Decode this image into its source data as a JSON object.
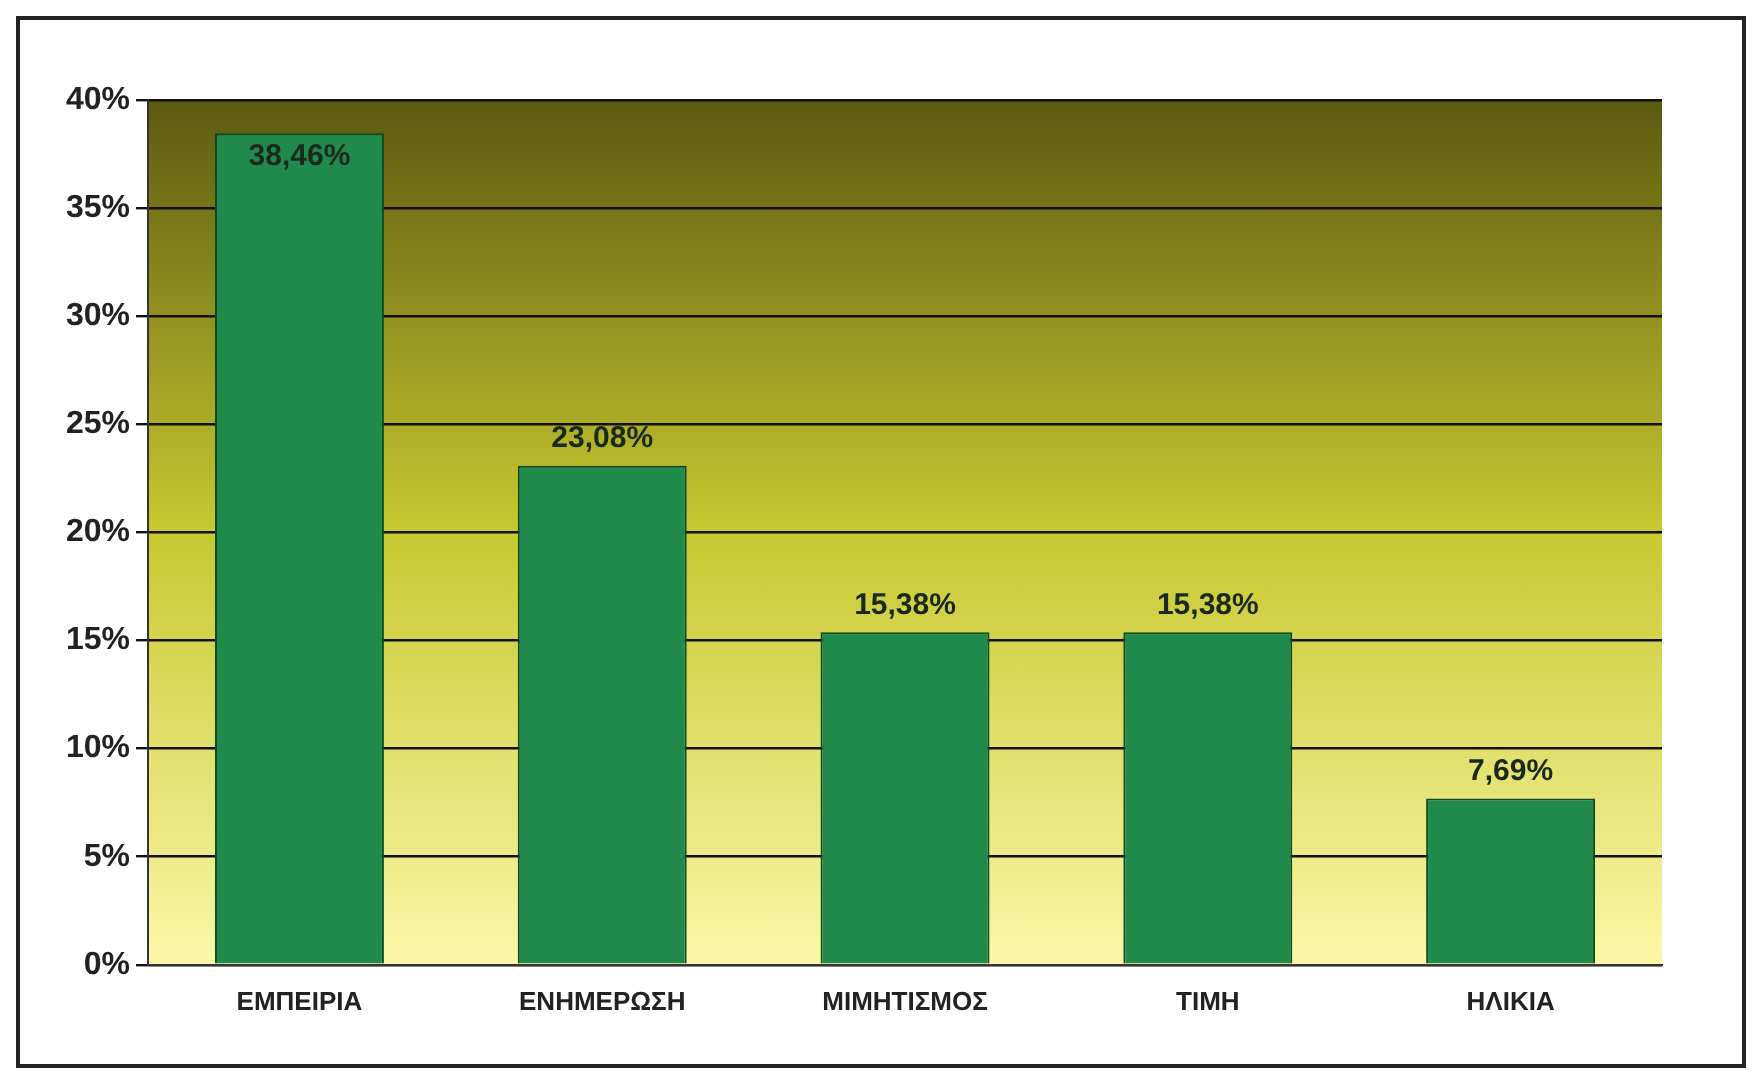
{
  "chart_data": {
    "type": "bar",
    "categories": [
      "ΕΜΠΕΙΡΙΑ",
      "ΕΝΗΜΕΡΩΣΗ",
      "ΜΙΜΗΤΙΣΜΟΣ",
      "ΤΙΜΗ",
      "ΗΛΙΚΙΑ"
    ],
    "values": [
      38.46,
      23.08,
      15.38,
      15.38,
      7.69
    ],
    "value_labels": [
      "38,46%",
      "23,08%",
      "15,38%",
      "15,38%",
      "7,69%"
    ],
    "color": "#1f8a4c",
    "ylim": [
      0,
      40
    ],
    "yticks": [
      {
        "value": 0,
        "label": "0%"
      },
      {
        "value": 5,
        "label": "5%"
      },
      {
        "value": 10,
        "label": "10%"
      },
      {
        "value": 15,
        "label": "15%"
      },
      {
        "value": 20,
        "label": "20%"
      },
      {
        "value": 25,
        "label": "25%"
      },
      {
        "value": 30,
        "label": "30%"
      },
      {
        "value": 35,
        "label": "35%"
      },
      {
        "value": 40,
        "label": "40%"
      }
    ],
    "grid": "y",
    "legend": false
  }
}
